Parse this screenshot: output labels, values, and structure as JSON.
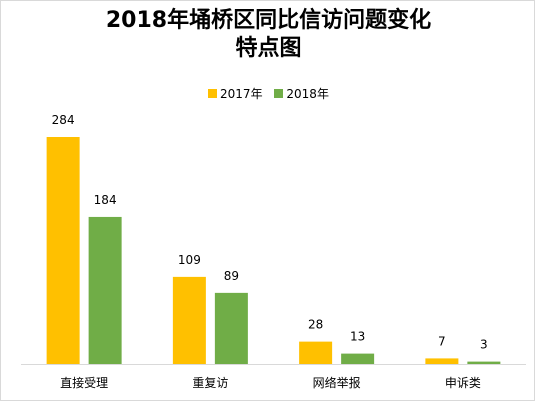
{
  "chart_data": {
    "type": "bar",
    "title_line1": "2018年埇桥区同比信访问题变化",
    "title_line2": "特点图",
    "categories": [
      "直接受理",
      "重复访",
      "网络举报",
      "申诉类"
    ],
    "series": [
      {
        "name": "2017年",
        "color": "#FFC000",
        "values": [
          284,
          109,
          28,
          7
        ]
      },
      {
        "name": "2018年",
        "color": "#70AD47",
        "values": [
          184,
          89,
          13,
          3
        ]
      }
    ],
    "ylim": [
      0,
      284
    ],
    "legend_position": "top",
    "grid": false
  }
}
